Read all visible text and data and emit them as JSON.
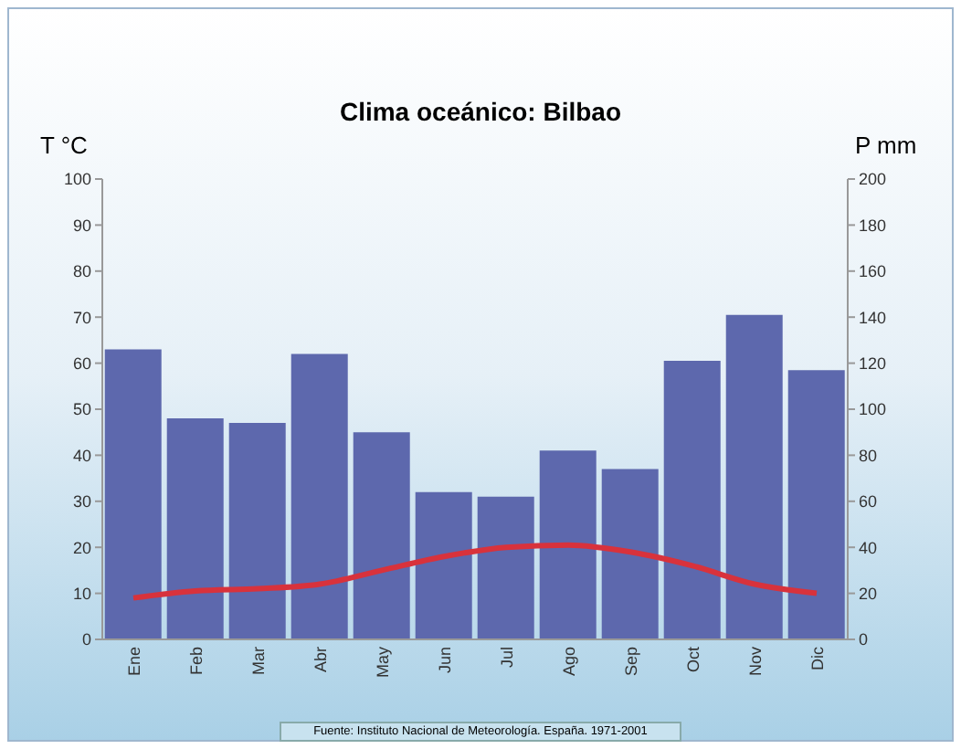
{
  "chart_data": {
    "type": "bar",
    "title": "Clima oceánico: Bilbao",
    "ylabel": "T °C",
    "y2label": "P mm",
    "categories": [
      "Ene",
      "Feb",
      "Mar",
      "Abr",
      "May",
      "Jun",
      "Jul",
      "Ago",
      "Sep",
      "Oct",
      "Nov",
      "Dic"
    ],
    "series": [
      {
        "axis": "y2",
        "color": "#5d68ad",
        "values": [
          126,
          96,
          94,
          124,
          90,
          64,
          62,
          82,
          74,
          121,
          141,
          117
        ]
      },
      {
        "type": "line",
        "axis": "y",
        "color": "#d8323c",
        "values": [
          9,
          10.5,
          11,
          12,
          15,
          18,
          20,
          20.5,
          19,
          16,
          12,
          10
        ]
      }
    ],
    "ylim": [
      0,
      100
    ],
    "yticks": [
      0,
      10,
      20,
      30,
      40,
      50,
      60,
      70,
      80,
      90,
      100
    ],
    "y2lim": [
      0,
      200
    ],
    "y2ticks": [
      0,
      20,
      40,
      60,
      80,
      100,
      120,
      140,
      160,
      180,
      200
    ],
    "grid": false,
    "legend": false,
    "marker": "none",
    "line_style": "solid",
    "annotations": [
      "Fuente: Instituto Nacional de Meteorología. España. 1971-2001"
    ]
  }
}
